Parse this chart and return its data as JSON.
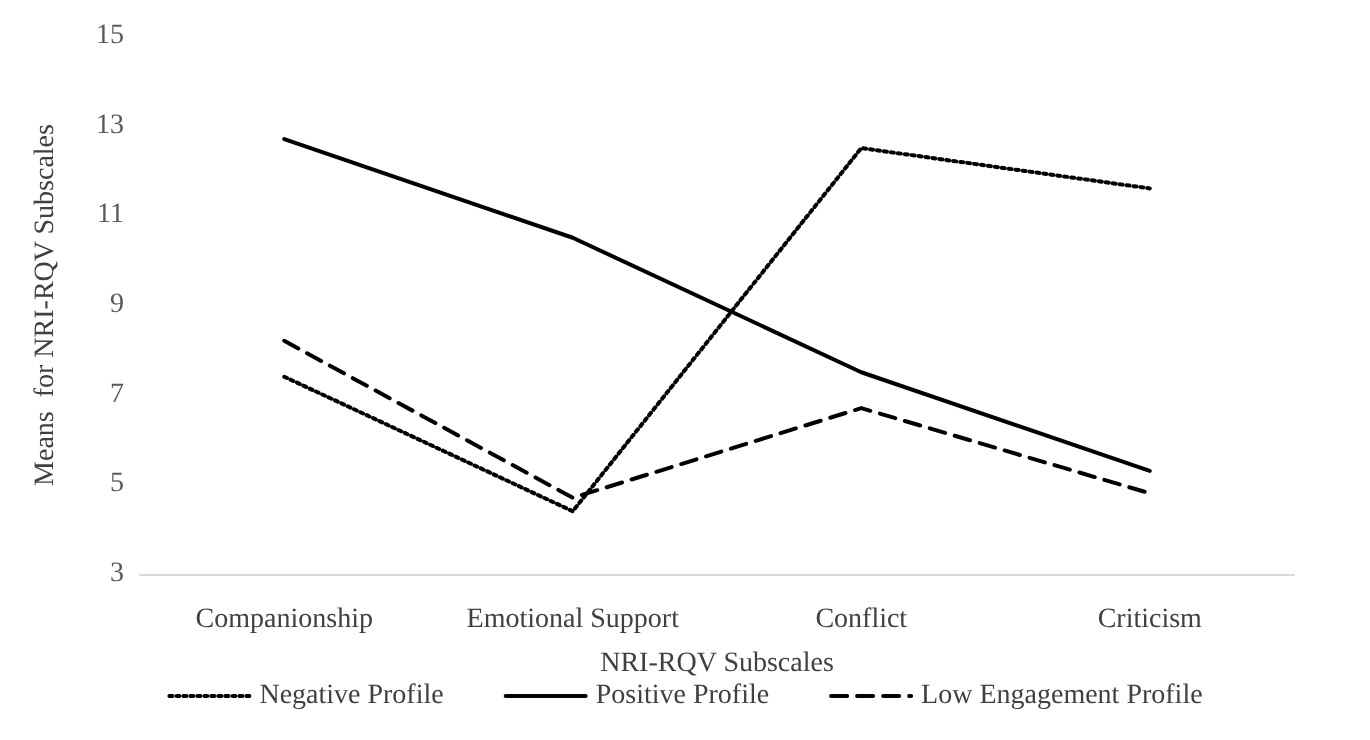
{
  "chart_data": {
    "type": "line",
    "xlabel": "NRI-RQV Subscales",
    "ylabel": "Means  for NRI-RQV Subscales",
    "categories": [
      "Companionship",
      "Emotional Support",
      "Conflict",
      "Criticism"
    ],
    "series": [
      {
        "name": "Negative Profile",
        "color": "#000000",
        "line_style": "dotted",
        "values": [
          7.4,
          4.4,
          12.5,
          11.6
        ]
      },
      {
        "name": "Positive Profile",
        "color": "#000000",
        "line_style": "solid",
        "values": [
          12.7,
          10.5,
          7.5,
          5.3
        ]
      },
      {
        "name": "Low Engagement Profile",
        "color": "#000000",
        "line_style": "dashed",
        "values": [
          8.2,
          4.7,
          6.7,
          4.8
        ]
      }
    ],
    "ylim": [
      3,
      15
    ],
    "yticks": [
      3,
      5,
      7,
      9,
      11,
      13,
      15
    ],
    "grid": false,
    "legend": "bottom",
    "marker": "none"
  }
}
